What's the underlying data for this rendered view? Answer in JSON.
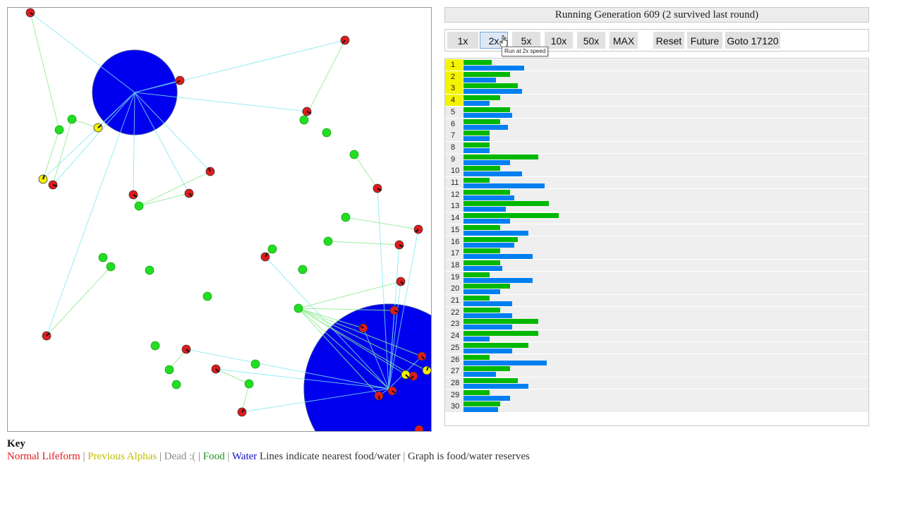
{
  "status": {
    "text": "Running Generation 609 (2 survived last round)"
  },
  "controls": [
    {
      "id": "speed-1x",
      "label": "1x"
    },
    {
      "id": "speed-2x",
      "label": "2x",
      "active": true
    },
    {
      "id": "speed-5x",
      "label": "5x"
    },
    {
      "id": "speed-10x",
      "label": "10x"
    },
    {
      "id": "speed-50x",
      "label": "50x"
    },
    {
      "id": "speed-max",
      "label": "MAX"
    },
    {
      "id": "reset",
      "label": "Reset"
    },
    {
      "id": "future",
      "label": "Future"
    },
    {
      "id": "goto",
      "label": "Goto 17120"
    }
  ],
  "tooltip": "Run at 2x speed",
  "graph": {
    "scale_max": 100,
    "rows": [
      {
        "label": "1",
        "alpha": true,
        "food": 7,
        "water": 15
      },
      {
        "label": "2",
        "alpha": true,
        "food": 11.5,
        "water": 8
      },
      {
        "label": "3",
        "alpha": true,
        "food": 13.5,
        "water": 14.5
      },
      {
        "label": "4",
        "alpha": true,
        "food": 9,
        "water": 6.5
      },
      {
        "label": "5",
        "food": 11.5,
        "water": 12
      },
      {
        "label": "6",
        "food": 9,
        "water": 11
      },
      {
        "label": "7",
        "food": 6.5,
        "water": 6.5
      },
      {
        "label": "8",
        "food": 6.5,
        "water": 6.5
      },
      {
        "label": "9",
        "food": 18.5,
        "water": 11.5
      },
      {
        "label": "10",
        "food": 9,
        "water": 14.5
      },
      {
        "label": "11",
        "food": 6.5,
        "water": 20
      },
      {
        "label": "12",
        "food": 11.5,
        "water": 12.5
      },
      {
        "label": "13",
        "food": 21,
        "water": 10.5
      },
      {
        "label": "14",
        "food": 23.5,
        "water": 11.5
      },
      {
        "label": "15",
        "food": 9,
        "water": 16
      },
      {
        "label": "16",
        "food": 13.5,
        "water": 12.5
      },
      {
        "label": "17",
        "food": 9,
        "water": 17
      },
      {
        "label": "18",
        "food": 9,
        "water": 9.5
      },
      {
        "label": "19",
        "food": 6.5,
        "water": 17
      },
      {
        "label": "20",
        "food": 11.5,
        "water": 9
      },
      {
        "label": "21",
        "food": 6.5,
        "water": 12
      },
      {
        "label": "22",
        "food": 9,
        "water": 12
      },
      {
        "label": "23",
        "food": 18.5,
        "water": 12
      },
      {
        "label": "24",
        "food": 18.5,
        "water": 6.5
      },
      {
        "label": "25",
        "food": 16,
        "water": 12
      },
      {
        "label": "26",
        "food": 6.5,
        "water": 20.5
      },
      {
        "label": "27",
        "food": 11.5,
        "water": 8
      },
      {
        "label": "28",
        "food": 13.5,
        "water": 16
      },
      {
        "label": "29",
        "food": 6.5,
        "water": 11.5
      },
      {
        "label": "30",
        "food": 9,
        "water": 8.5
      }
    ]
  },
  "key": {
    "title": "Key",
    "normal": "Normal Lifeform",
    "alpha": "Previous Alphas",
    "dead": "Dead :(",
    "food": "Food",
    "water": "Water",
    "lines_note": "Lines indicate nearest food/water",
    "graph_note": "Graph is food/water reserves",
    "sep": "|"
  },
  "colors": {
    "lifeform": "#e01b1b",
    "alpha": "#f0f000",
    "food": "#22dd22",
    "water": "#0000ee"
  }
}
